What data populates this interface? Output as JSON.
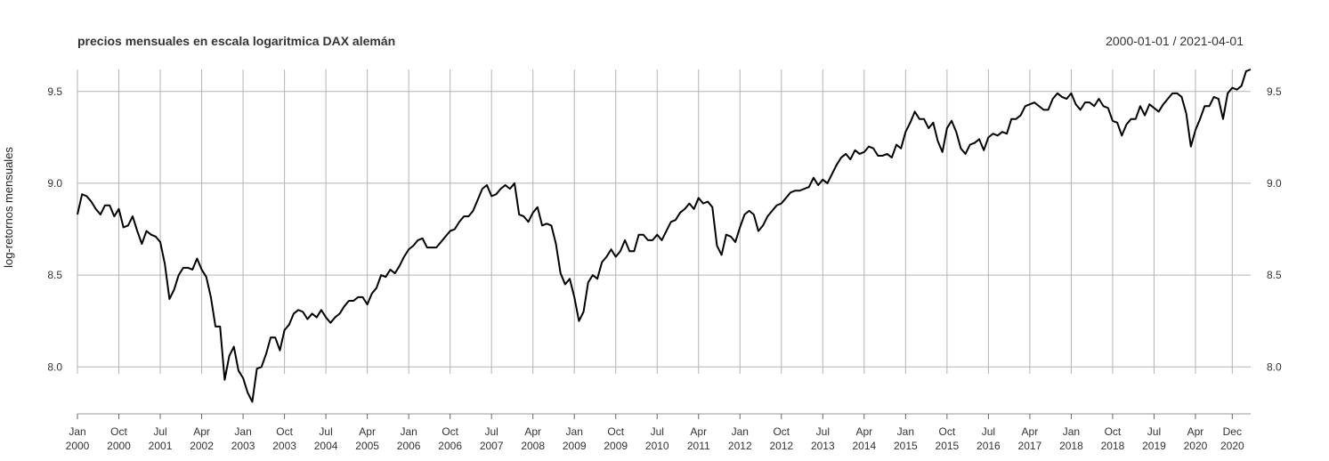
{
  "chart_data": {
    "type": "line",
    "title": "precios mensuales en escala logaritmica DAX alemán",
    "date_range": "2000-01-01 / 2021-04-01",
    "ylabel": "log-retornos mensuales",
    "xlabel": "",
    "ylim": [
      7.73,
      9.62
    ],
    "y_ticks": [
      "8.0",
      "8.5",
      "9.0",
      "9.5"
    ],
    "x_ticks": [
      {
        "month": "Jan",
        "year": "2000",
        "date": "2000-01"
      },
      {
        "month": "Oct",
        "year": "2000",
        "date": "2000-10"
      },
      {
        "month": "Jul",
        "year": "2001",
        "date": "2001-07"
      },
      {
        "month": "Apr",
        "year": "2002",
        "date": "2002-04"
      },
      {
        "month": "Jan",
        "year": "2003",
        "date": "2003-01"
      },
      {
        "month": "Oct",
        "year": "2003",
        "date": "2003-10"
      },
      {
        "month": "Jul",
        "year": "2004",
        "date": "2004-07"
      },
      {
        "month": "Apr",
        "year": "2005",
        "date": "2005-04"
      },
      {
        "month": "Jan",
        "year": "2006",
        "date": "2006-01"
      },
      {
        "month": "Oct",
        "year": "2006",
        "date": "2006-10"
      },
      {
        "month": "Jul",
        "year": "2007",
        "date": "2007-07"
      },
      {
        "month": "Apr",
        "year": "2008",
        "date": "2008-04"
      },
      {
        "month": "Jan",
        "year": "2009",
        "date": "2009-01"
      },
      {
        "month": "Oct",
        "year": "2009",
        "date": "2009-10"
      },
      {
        "month": "Jul",
        "year": "2010",
        "date": "2010-07"
      },
      {
        "month": "Apr",
        "year": "2011",
        "date": "2011-04"
      },
      {
        "month": "Jan",
        "year": "2012",
        "date": "2012-01"
      },
      {
        "month": "Oct",
        "year": "2012",
        "date": "2012-10"
      },
      {
        "month": "Jul",
        "year": "2013",
        "date": "2013-07"
      },
      {
        "month": "Apr",
        "year": "2014",
        "date": "2014-04"
      },
      {
        "month": "Jan",
        "year": "2015",
        "date": "2015-01"
      },
      {
        "month": "Oct",
        "year": "2015",
        "date": "2015-10"
      },
      {
        "month": "Jul",
        "year": "2016",
        "date": "2016-07"
      },
      {
        "month": "Apr",
        "year": "2017",
        "date": "2017-04"
      },
      {
        "month": "Jan",
        "year": "2018",
        "date": "2018-01"
      },
      {
        "month": "Oct",
        "year": "2018",
        "date": "2018-10"
      },
      {
        "month": "Jul",
        "year": "2019",
        "date": "2019-07"
      },
      {
        "month": "Apr",
        "year": "2020",
        "date": "2020-04"
      },
      {
        "month": "Dec",
        "year": "2020",
        "date": "2020-12"
      }
    ],
    "grid": true,
    "series": [
      {
        "color": "#000000",
        "start": "2000-01",
        "frequency": "monthly",
        "values": [
          8.83,
          8.94,
          8.93,
          8.9,
          8.86,
          8.83,
          8.88,
          8.88,
          8.82,
          8.86,
          8.76,
          8.77,
          8.82,
          8.74,
          8.67,
          8.74,
          8.72,
          8.71,
          8.68,
          8.56,
          8.37,
          8.42,
          8.5,
          8.54,
          8.54,
          8.53,
          8.59,
          8.53,
          8.49,
          8.38,
          8.22,
          8.22,
          7.93,
          8.06,
          8.11,
          7.98,
          7.94,
          7.86,
          7.81,
          7.99,
          8.0,
          8.07,
          8.16,
          8.16,
          8.09,
          8.2,
          8.23,
          8.29,
          8.31,
          8.3,
          8.26,
          8.29,
          8.27,
          8.31,
          8.27,
          8.24,
          8.27,
          8.29,
          8.33,
          8.36,
          8.36,
          8.38,
          8.38,
          8.34,
          8.4,
          8.43,
          8.5,
          8.49,
          8.53,
          8.51,
          8.55,
          8.6,
          8.64,
          8.66,
          8.69,
          8.7,
          8.65,
          8.65,
          8.65,
          8.68,
          8.71,
          8.74,
          8.75,
          8.79,
          8.82,
          8.82,
          8.85,
          8.91,
          8.97,
          8.99,
          8.93,
          8.94,
          8.97,
          8.99,
          8.97,
          9.0,
          8.83,
          8.82,
          8.79,
          8.84,
          8.87,
          8.77,
          8.78,
          8.77,
          8.67,
          8.51,
          8.45,
          8.48,
          8.38,
          8.25,
          8.3,
          8.46,
          8.5,
          8.48,
          8.57,
          8.6,
          8.64,
          8.6,
          8.63,
          8.69,
          8.63,
          8.63,
          8.72,
          8.72,
          8.69,
          8.69,
          8.72,
          8.69,
          8.74,
          8.79,
          8.8,
          8.84,
          8.86,
          8.89,
          8.86,
          8.92,
          8.89,
          8.9,
          8.87,
          8.66,
          8.61,
          8.72,
          8.71,
          8.68,
          8.76,
          8.83,
          8.85,
          8.83,
          8.74,
          8.77,
          8.82,
          8.85,
          8.88,
          8.89,
          8.92,
          8.95,
          8.96,
          8.96,
          8.97,
          8.98,
          9.03,
          8.99,
          9.02,
          9.0,
          9.05,
          9.1,
          9.14,
          9.16,
          9.13,
          9.18,
          9.16,
          9.17,
          9.2,
          9.19,
          9.15,
          9.15,
          9.16,
          9.14,
          9.21,
          9.19,
          9.28,
          9.33,
          9.39,
          9.35,
          9.35,
          9.3,
          9.33,
          9.23,
          9.17,
          9.3,
          9.34,
          9.28,
          9.19,
          9.16,
          9.21,
          9.22,
          9.24,
          9.18,
          9.25,
          9.27,
          9.26,
          9.28,
          9.27,
          9.35,
          9.35,
          9.37,
          9.42,
          9.43,
          9.44,
          9.42,
          9.4,
          9.4,
          9.46,
          9.49,
          9.47,
          9.46,
          9.49,
          9.43,
          9.4,
          9.44,
          9.44,
          9.42,
          9.46,
          9.42,
          9.41,
          9.34,
          9.33,
          9.26,
          9.32,
          9.35,
          9.35,
          9.42,
          9.37,
          9.43,
          9.41,
          9.39,
          9.43,
          9.46,
          9.49,
          9.49,
          9.47,
          9.38,
          9.2,
          9.29,
          9.35,
          9.42,
          9.42,
          9.47,
          9.46,
          9.35,
          9.49,
          9.52,
          9.51,
          9.53,
          9.61,
          9.62
        ]
      }
    ]
  }
}
